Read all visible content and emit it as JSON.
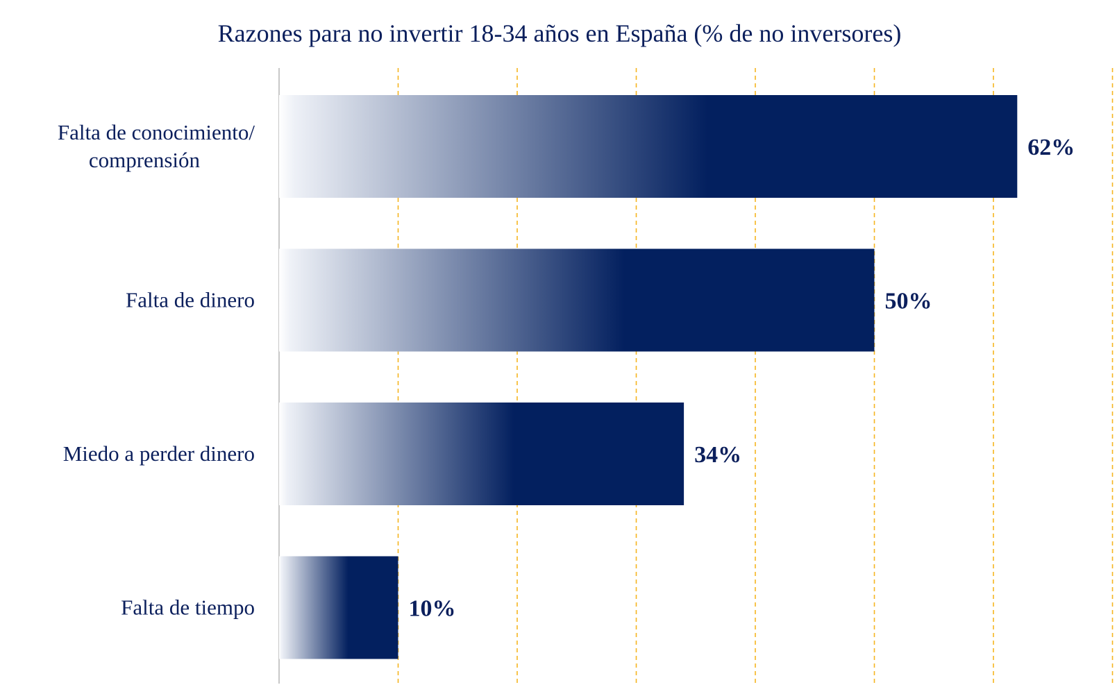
{
  "chart_data": {
    "type": "bar",
    "orientation": "horizontal",
    "title": "Razones para no invertir 18-34 años en España (% de no inversores)",
    "categories": [
      [
        "Falta de conocimiento/",
        "comprensión"
      ],
      [
        "Falta de dinero"
      ],
      [
        "Miedo a perder dinero"
      ],
      [
        "Falta de tiempo"
      ]
    ],
    "values": [
      62,
      50,
      34,
      10
    ],
    "value_labels": [
      "62%",
      "50%",
      "34%",
      "10%"
    ],
    "xlim": [
      0,
      70
    ],
    "grid_step": 10,
    "xlabel": "",
    "ylabel": "",
    "colors": {
      "bar": "#03205f",
      "bar_light": "#ffffff",
      "text": "#0b1f5c",
      "grid": "#f5b51f",
      "axis": "#c8c8c8"
    }
  }
}
